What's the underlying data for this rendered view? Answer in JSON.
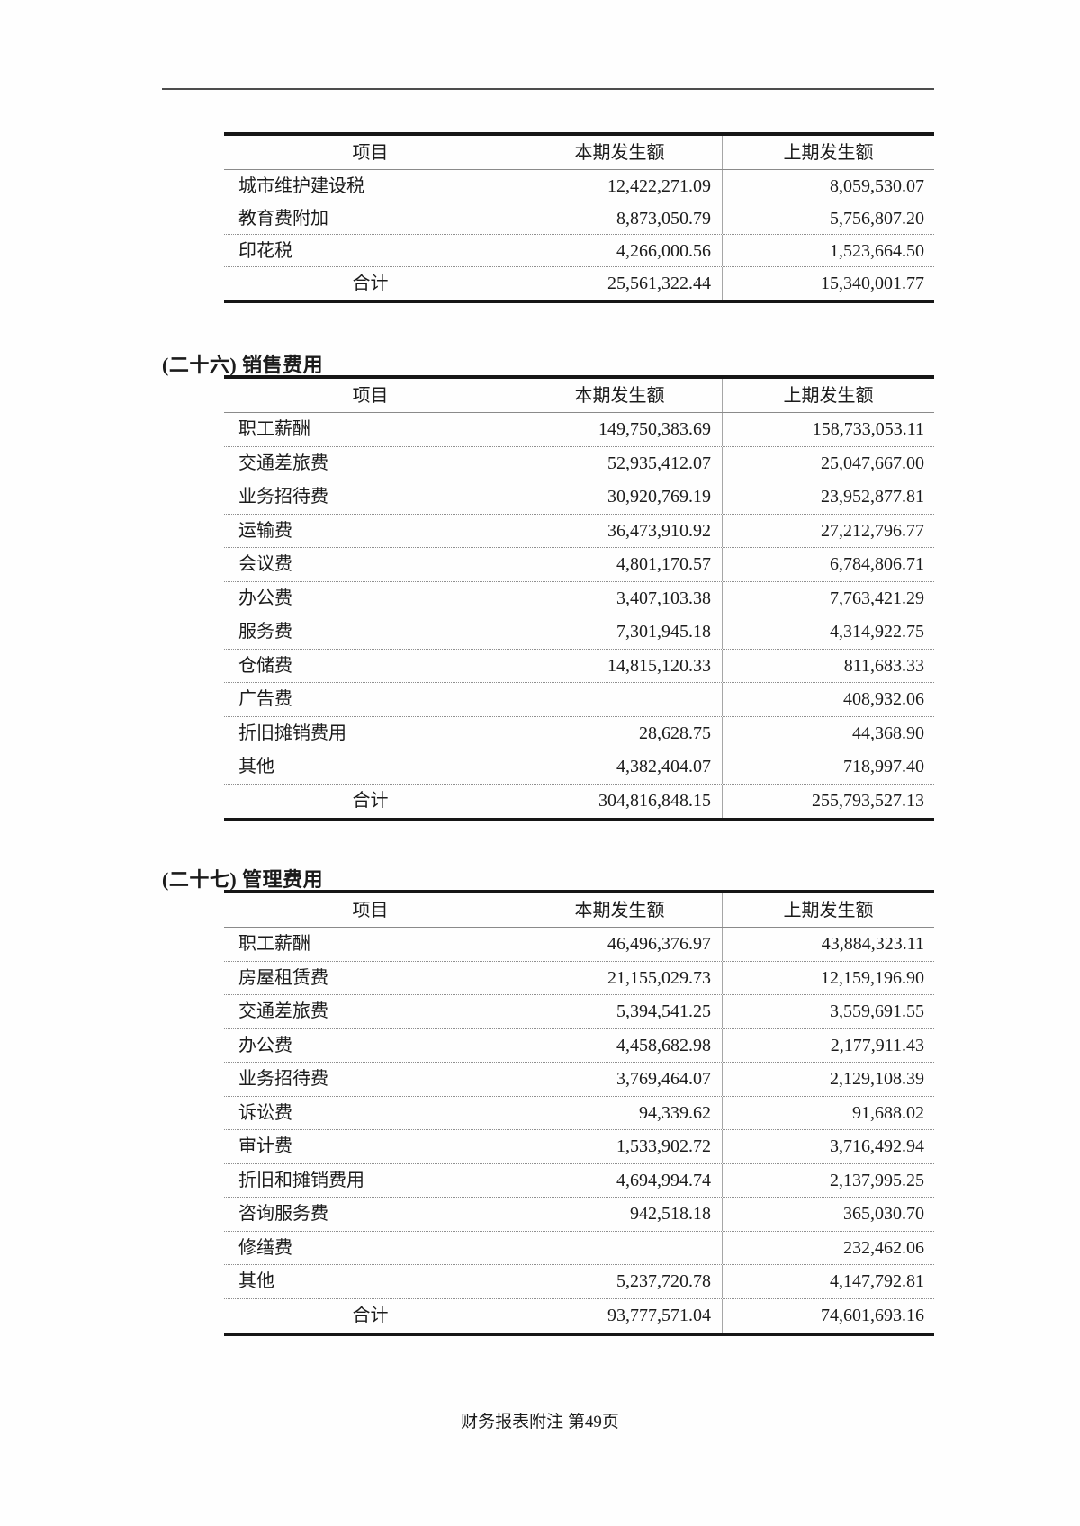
{
  "page": {
    "footer": "财务报表附注 第49页"
  },
  "tables": [
    {
      "name": "taxes-and-surcharges-table",
      "heading": "",
      "columns": [
        "项目",
        "本期发生额",
        "上期发生额"
      ],
      "rows": [
        [
          "城市维护建设税",
          "12,422,271.09",
          "8,059,530.07"
        ],
        [
          "教育费附加",
          "8,873,050.79",
          "5,756,807.20"
        ],
        [
          "印花税",
          "4,266,000.56",
          "1,523,664.50"
        ]
      ],
      "total": [
        "合计",
        "25,561,322.44",
        "15,340,001.77"
      ]
    },
    {
      "name": "selling-expenses-table",
      "heading": "(二十六) 销售费用",
      "columns": [
        "项目",
        "本期发生额",
        "上期发生额"
      ],
      "rows": [
        [
          "职工薪酬",
          "149,750,383.69",
          "158,733,053.11"
        ],
        [
          "交通差旅费",
          "52,935,412.07",
          "25,047,667.00"
        ],
        [
          "业务招待费",
          "30,920,769.19",
          "23,952,877.81"
        ],
        [
          "运输费",
          "36,473,910.92",
          "27,212,796.77"
        ],
        [
          "会议费",
          "4,801,170.57",
          "6,784,806.71"
        ],
        [
          "办公费",
          "3,407,103.38",
          "7,763,421.29"
        ],
        [
          "服务费",
          "7,301,945.18",
          "4,314,922.75"
        ],
        [
          "仓储费",
          "14,815,120.33",
          "811,683.33"
        ],
        [
          "广告费",
          "",
          "408,932.06"
        ],
        [
          "折旧摊销费用",
          "28,628.75",
          "44,368.90"
        ],
        [
          "其他",
          "4,382,404.07",
          "718,997.40"
        ]
      ],
      "total": [
        "合计",
        "304,816,848.15",
        "255,793,527.13"
      ]
    },
    {
      "name": "admin-expenses-table",
      "heading": "(二十七) 管理费用",
      "columns": [
        "项目",
        "本期发生额",
        "上期发生额"
      ],
      "rows": [
        [
          "职工薪酬",
          "46,496,376.97",
          "43,884,323.11"
        ],
        [
          "房屋租赁费",
          "21,155,029.73",
          "12,159,196.90"
        ],
        [
          "交通差旅费",
          "5,394,541.25",
          "3,559,691.55"
        ],
        [
          "办公费",
          "4,458,682.98",
          "2,177,911.43"
        ],
        [
          "业务招待费",
          "3,769,464.07",
          "2,129,108.39"
        ],
        [
          "诉讼费",
          "94,339.62",
          "91,688.02"
        ],
        [
          "审计费",
          "1,533,902.72",
          "3,716,492.94"
        ],
        [
          "折旧和摊销费用",
          "4,694,994.74",
          "2,137,995.25"
        ],
        [
          "咨询服务费",
          "942,518.18",
          "365,030.70"
        ],
        [
          "修缮费",
          "",
          "232,462.06"
        ],
        [
          "其他",
          "5,237,720.78",
          "4,147,792.81"
        ]
      ],
      "total": [
        "合计",
        "93,777,571.04",
        "74,601,693.16"
      ]
    }
  ]
}
